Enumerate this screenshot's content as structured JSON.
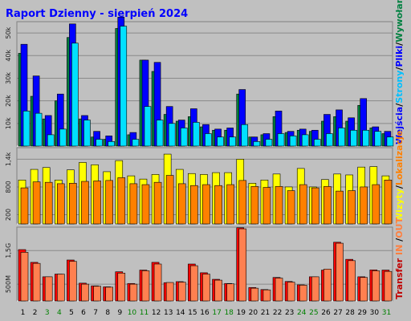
{
  "page": {
    "title": "Raport Dzienny -  sierpień 2024"
  },
  "chart_data": [
    {
      "type": "bar",
      "panel": "pages",
      "categories": [
        "1",
        "2",
        "3",
        "4",
        "5",
        "6",
        "7",
        "8",
        "9",
        "10",
        "11",
        "12",
        "13",
        "14",
        "15",
        "16",
        "17",
        "18",
        "19",
        "20",
        "21",
        "22",
        "23",
        "24",
        "25",
        "26",
        "27",
        "28",
        "29",
        "30",
        "31"
      ],
      "weekend_days": [
        "3",
        "4",
        "10",
        "11",
        "17",
        "18",
        "24",
        "25",
        "31"
      ],
      "right_label_parts": [
        {
          "text": "Wejścia",
          "color": "#0000ff"
        },
        {
          "text": "/",
          "color": "#000000"
        },
        {
          "text": "Strony",
          "color": "#00c0ff"
        },
        {
          "text": "/",
          "color": "#000000"
        },
        {
          "text": "Pliki",
          "color": "#0000ff"
        },
        {
          "text": "/",
          "color": "#000000"
        },
        {
          "text": "Wywołania",
          "color": "#008040"
        }
      ],
      "y_ticks": [
        "10k",
        "20k",
        "30k",
        "40k",
        "50k"
      ],
      "y_tick_values": [
        10000,
        20000,
        30000,
        40000,
        50000
      ],
      "ylim": [
        0,
        55000
      ],
      "series": [
        {
          "name": "Wywołania",
          "color": "#008040",
          "values": [
            41000,
            22000,
            12000,
            20000,
            48000,
            12000,
            4000,
            3000,
            52000,
            5000,
            38000,
            33000,
            14000,
            11000,
            13000,
            8500,
            7000,
            7000,
            23000,
            4000,
            5000,
            13000,
            6000,
            7000,
            6500,
            11000,
            13000,
            11000,
            18000,
            8000,
            5500
          ]
        },
        {
          "name": "Pliki",
          "color": "#0000ff",
          "values": [
            45000,
            31000,
            13500,
            23000,
            54000,
            13500,
            6500,
            4500,
            57000,
            6000,
            38000,
            37000,
            17500,
            11500,
            16500,
            9500,
            7500,
            8000,
            25000,
            4000,
            5500,
            15500,
            6500,
            7500,
            7000,
            14000,
            16000,
            12500,
            21000,
            8500,
            6500
          ]
        },
        {
          "name": "Strony",
          "color": "#00e0ff",
          "values": [
            15500,
            14500,
            5000,
            7500,
            45500,
            11500,
            3000,
            2000,
            53000,
            3000,
            17500,
            11500,
            10000,
            8000,
            10500,
            5500,
            4000,
            4000,
            9500,
            2000,
            3000,
            5500,
            4500,
            5000,
            3000,
            5500,
            8000,
            7000,
            7000,
            6500,
            4000
          ]
        }
      ]
    },
    {
      "type": "bar",
      "panel": "visits",
      "categories": [
        "1",
        "2",
        "3",
        "4",
        "5",
        "6",
        "7",
        "8",
        "9",
        "10",
        "11",
        "12",
        "13",
        "14",
        "15",
        "16",
        "17",
        "18",
        "19",
        "20",
        "21",
        "22",
        "23",
        "24",
        "25",
        "26",
        "27",
        "28",
        "29",
        "30",
        "31"
      ],
      "right_label_parts": [
        {
          "text": "Wizyty",
          "color": "#ffff00"
        },
        {
          "text": "/",
          "color": "#000000"
        },
        {
          "text": "Lokalizacje",
          "color": "#ff8000"
        }
      ],
      "y_ticks": [
        "200",
        "800",
        "1,4k"
      ],
      "y_tick_values": [
        200,
        800,
        1400
      ],
      "ylim": [
        0,
        1650
      ],
      "series": [
        {
          "name": "Wizyty",
          "color": "#ffff00",
          "values": [
            950,
            1180,
            1220,
            950,
            1170,
            1330,
            1280,
            1130,
            1370,
            1040,
            970,
            1070,
            1510,
            1180,
            1090,
            1070,
            1110,
            1110,
            1400,
            880,
            950,
            1080,
            800,
            1200,
            800,
            960,
            1080,
            1060,
            1230,
            1240,
            1040
          ]
        },
        {
          "name": "Lokalizacje",
          "color": "#ff8000",
          "values": [
            780,
            910,
            900,
            870,
            880,
            920,
            930,
            940,
            1000,
            870,
            850,
            900,
            1050,
            870,
            830,
            850,
            830,
            850,
            940,
            810,
            790,
            810,
            720,
            850,
            780,
            810,
            710,
            720,
            800,
            850,
            950
          ]
        }
      ]
    },
    {
      "type": "bar",
      "panel": "transfer",
      "categories": [
        "1",
        "2",
        "3",
        "4",
        "5",
        "6",
        "7",
        "8",
        "9",
        "10",
        "11",
        "12",
        "13",
        "14",
        "15",
        "16",
        "17",
        "18",
        "19",
        "20",
        "21",
        "22",
        "23",
        "24",
        "25",
        "26",
        "27",
        "28",
        "29",
        "30",
        "31"
      ],
      "right_label_parts": [
        {
          "text": "Transfer",
          "color": "#c00000"
        },
        {
          "text": " IN ",
          "color": "#ff8040"
        },
        {
          "text": "/",
          "color": "#000000"
        },
        {
          "text": "OUT",
          "color": "#ff8040"
        }
      ],
      "y_ticks": [
        "500M",
        "1,5G"
      ],
      "y_tick_values": [
        500,
        1500
      ],
      "ylim": [
        0,
        2200
      ],
      "series": [
        {
          "name": "Transfer",
          "color": "#ff0000",
          "values": [
            1530,
            1150,
            720,
            800,
            1220,
            530,
            450,
            420,
            870,
            520,
            920,
            1150,
            545,
            575,
            1100,
            840,
            645,
            520,
            2180,
            400,
            340,
            700,
            580,
            480,
            720,
            920,
            1750,
            1240,
            720,
            925,
            920
          ]
        },
        {
          "name": "IN/OUT",
          "color": "#ff8050",
          "values": [
            1450,
            1120,
            720,
            800,
            1180,
            500,
            440,
            410,
            830,
            500,
            900,
            1100,
            550,
            560,
            1050,
            800,
            620,
            510,
            2150,
            380,
            330,
            680,
            560,
            470,
            720,
            950,
            1720,
            1200,
            700,
            900,
            880
          ]
        }
      ]
    }
  ]
}
